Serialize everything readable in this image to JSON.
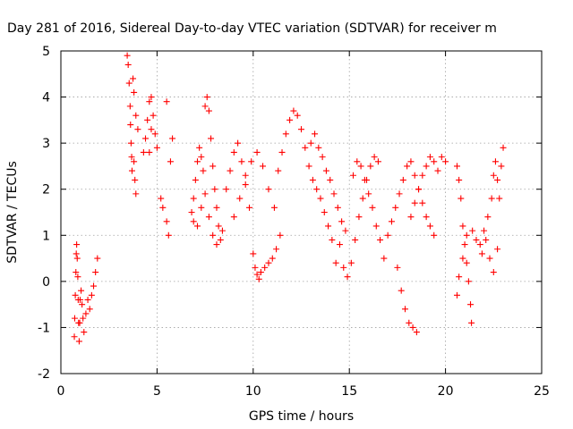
{
  "chart_data": {
    "type": "scatter",
    "title": "Day 281 of 2016, Sidereal Day-to-day VTEC variation (SDTVAR) for receiver m",
    "xlabel": "GPS time / hours",
    "ylabel": "SDTVAR / TECUs",
    "xlim": [
      0,
      25
    ],
    "ylim": [
      -2,
      5
    ],
    "xticks": [
      "0",
      "5",
      "10",
      "15",
      "20",
      "25"
    ],
    "yticks": [
      "-2",
      "-1",
      "0",
      "1",
      "2",
      "3",
      "4",
      "5"
    ],
    "grid": true,
    "marker": "plus",
    "color": "#ff0000",
    "series": [
      {
        "values": [
          [
            0.7,
            -1.2
          ],
          [
            0.72,
            -0.8
          ],
          [
            0.75,
            -0.3
          ],
          [
            0.78,
            0.2
          ],
          [
            0.8,
            0.6
          ],
          [
            0.82,
            0.8
          ],
          [
            0.85,
            0.5
          ],
          [
            0.88,
            0.1
          ],
          [
            0.9,
            -0.4
          ],
          [
            0.92,
            -0.9
          ],
          [
            0.95,
            -1.3
          ],
          [
            0.98,
            -0.9
          ],
          [
            1.0,
            -0.4
          ],
          [
            1.05,
            -0.2
          ],
          [
            1.1,
            -0.5
          ],
          [
            1.15,
            -0.8
          ],
          [
            1.2,
            -1.1
          ],
          [
            1.3,
            -0.7
          ],
          [
            1.4,
            -0.4
          ],
          [
            1.5,
            -0.6
          ],
          [
            1.6,
            -0.3
          ],
          [
            1.7,
            -0.1
          ],
          [
            1.8,
            0.2
          ],
          [
            1.9,
            0.5
          ],
          [
            3.45,
            4.9
          ],
          [
            3.5,
            4.7
          ],
          [
            3.55,
            4.3
          ],
          [
            3.6,
            3.8
          ],
          [
            3.62,
            3.4
          ],
          [
            3.65,
            3.0
          ],
          [
            3.68,
            2.7
          ],
          [
            3.7,
            2.4
          ],
          [
            3.8,
            2.6
          ],
          [
            3.85,
            2.2
          ],
          [
            3.9,
            1.9
          ],
          [
            3.75,
            4.4
          ],
          [
            3.8,
            4.1
          ],
          [
            3.9,
            3.6
          ],
          [
            4.0,
            3.3
          ],
          [
            4.3,
            2.8
          ],
          [
            4.4,
            3.1
          ],
          [
            4.5,
            3.5
          ],
          [
            4.6,
            3.9
          ],
          [
            4.7,
            4.0
          ],
          [
            4.8,
            3.6
          ],
          [
            4.9,
            3.2
          ],
          [
            5.0,
            2.9
          ],
          [
            4.6,
            2.8
          ],
          [
            4.7,
            3.3
          ],
          [
            5.2,
            1.8
          ],
          [
            5.3,
            1.6
          ],
          [
            5.5,
            1.3
          ],
          [
            5.6,
            1.0
          ],
          [
            5.5,
            3.9
          ],
          [
            5.7,
            2.6
          ],
          [
            5.8,
            3.1
          ],
          [
            6.8,
            1.5
          ],
          [
            6.9,
            1.8
          ],
          [
            7.0,
            2.2
          ],
          [
            7.1,
            2.6
          ],
          [
            7.2,
            2.9
          ],
          [
            7.3,
            2.7
          ],
          [
            7.4,
            2.4
          ],
          [
            7.5,
            3.8
          ],
          [
            7.6,
            4.0
          ],
          [
            7.7,
            3.7
          ],
          [
            7.8,
            3.1
          ],
          [
            7.9,
            2.5
          ],
          [
            8.0,
            2.0
          ],
          [
            8.1,
            1.6
          ],
          [
            8.2,
            1.2
          ],
          [
            8.3,
            0.9
          ],
          [
            8.4,
            1.1
          ],
          [
            6.9,
            1.3
          ],
          [
            7.1,
            1.2
          ],
          [
            7.3,
            1.6
          ],
          [
            7.5,
            1.9
          ],
          [
            7.7,
            1.4
          ],
          [
            7.9,
            1.0
          ],
          [
            8.1,
            0.8
          ],
          [
            8.6,
            2.0
          ],
          [
            8.8,
            2.4
          ],
          [
            9.0,
            2.8
          ],
          [
            9.2,
            3.0
          ],
          [
            9.4,
            2.6
          ],
          [
            9.6,
            2.1
          ],
          [
            9.8,
            1.6
          ],
          [
            10.0,
            0.6
          ],
          [
            10.1,
            0.3
          ],
          [
            10.2,
            0.15
          ],
          [
            10.3,
            0.05
          ],
          [
            10.4,
            0.2
          ],
          [
            10.6,
            0.3
          ],
          [
            10.8,
            0.4
          ],
          [
            11.0,
            0.5
          ],
          [
            11.2,
            0.7
          ],
          [
            11.4,
            1.0
          ],
          [
            9.0,
            1.4
          ],
          [
            9.3,
            1.8
          ],
          [
            9.6,
            2.3
          ],
          [
            9.9,
            2.6
          ],
          [
            10.2,
            2.8
          ],
          [
            10.5,
            2.5
          ],
          [
            10.8,
            2.0
          ],
          [
            11.1,
            1.6
          ],
          [
            11.3,
            2.4
          ],
          [
            11.5,
            2.8
          ],
          [
            11.7,
            3.2
          ],
          [
            11.9,
            3.5
          ],
          [
            12.1,
            3.7
          ],
          [
            12.3,
            3.6
          ],
          [
            12.5,
            3.3
          ],
          [
            12.7,
            2.9
          ],
          [
            12.9,
            2.5
          ],
          [
            13.1,
            2.2
          ],
          [
            13.3,
            2.0
          ],
          [
            13.5,
            1.8
          ],
          [
            13.7,
            1.5
          ],
          [
            13.9,
            1.2
          ],
          [
            14.1,
            0.9
          ],
          [
            13.0,
            3.0
          ],
          [
            13.2,
            3.2
          ],
          [
            13.4,
            2.9
          ],
          [
            13.6,
            2.7
          ],
          [
            13.8,
            2.4
          ],
          [
            14.0,
            2.2
          ],
          [
            14.2,
            1.9
          ],
          [
            14.4,
            1.6
          ],
          [
            14.6,
            1.3
          ],
          [
            14.8,
            1.1
          ],
          [
            14.3,
            0.4
          ],
          [
            14.5,
            0.8
          ],
          [
            14.7,
            0.3
          ],
          [
            14.9,
            0.1
          ],
          [
            15.1,
            0.4
          ],
          [
            15.3,
            0.9
          ],
          [
            15.5,
            1.4
          ],
          [
            15.7,
            1.8
          ],
          [
            15.9,
            2.2
          ],
          [
            16.1,
            2.5
          ],
          [
            16.3,
            2.7
          ],
          [
            16.5,
            2.6
          ],
          [
            15.2,
            2.3
          ],
          [
            15.4,
            2.6
          ],
          [
            15.6,
            2.5
          ],
          [
            15.8,
            2.2
          ],
          [
            16.0,
            1.9
          ],
          [
            16.2,
            1.6
          ],
          [
            16.4,
            1.2
          ],
          [
            16.6,
            0.9
          ],
          [
            16.8,
            0.5
          ],
          [
            17.0,
            1.0
          ],
          [
            17.2,
            1.3
          ],
          [
            17.4,
            1.6
          ],
          [
            17.6,
            1.9
          ],
          [
            17.8,
            2.2
          ],
          [
            18.0,
            2.5
          ],
          [
            18.2,
            2.6
          ],
          [
            18.4,
            2.3
          ],
          [
            18.6,
            2.0
          ],
          [
            18.8,
            1.7
          ],
          [
            19.0,
            1.4
          ],
          [
            19.2,
            1.2
          ],
          [
            19.4,
            1.0
          ],
          [
            17.5,
            0.3
          ],
          [
            17.7,
            -0.2
          ],
          [
            17.9,
            -0.6
          ],
          [
            18.1,
            -0.9
          ],
          [
            18.3,
            -1.0
          ],
          [
            18.5,
            -1.1
          ],
          [
            18.2,
            1.4
          ],
          [
            18.4,
            1.7
          ],
          [
            18.6,
            2.0
          ],
          [
            18.8,
            2.3
          ],
          [
            19.0,
            2.5
          ],
          [
            19.2,
            2.7
          ],
          [
            19.4,
            2.6
          ],
          [
            19.6,
            2.4
          ],
          [
            19.8,
            2.7
          ],
          [
            20.0,
            2.6
          ],
          [
            20.6,
            2.5
          ],
          [
            20.7,
            2.2
          ],
          [
            20.8,
            1.8
          ],
          [
            20.9,
            1.2
          ],
          [
            21.0,
            0.8
          ],
          [
            21.1,
            0.4
          ],
          [
            21.2,
            0.0
          ],
          [
            21.3,
            -0.5
          ],
          [
            21.35,
            -0.9
          ],
          [
            20.6,
            -0.3
          ],
          [
            20.7,
            0.1
          ],
          [
            20.9,
            0.5
          ],
          [
            21.1,
            1.0
          ],
          [
            21.4,
            1.1
          ],
          [
            21.6,
            0.9
          ],
          [
            21.8,
            0.8
          ],
          [
            22.0,
            1.1
          ],
          [
            22.2,
            1.4
          ],
          [
            22.4,
            1.8
          ],
          [
            22.5,
            2.3
          ],
          [
            22.6,
            2.6
          ],
          [
            22.7,
            2.2
          ],
          [
            22.8,
            1.8
          ],
          [
            22.9,
            2.5
          ],
          [
            23.0,
            2.9
          ],
          [
            21.9,
            0.6
          ],
          [
            22.1,
            0.9
          ],
          [
            22.3,
            0.5
          ],
          [
            22.5,
            0.2
          ],
          [
            22.7,
            0.7
          ]
        ]
      }
    ]
  }
}
